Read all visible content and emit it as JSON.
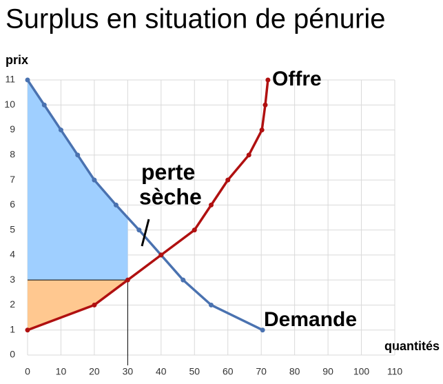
{
  "chart_data": {
    "type": "line",
    "title": "Surplus en situation de pénurie",
    "x_label": "quantités",
    "y_label": "prix",
    "xlim": [
      0,
      110
    ],
    "ylim": [
      0,
      11
    ],
    "xticks": [
      0,
      10,
      20,
      30,
      40,
      50,
      60,
      70,
      80,
      90,
      100,
      110
    ],
    "yticks": [
      0,
      1,
      2,
      3,
      4,
      5,
      6,
      7,
      8,
      9,
      10,
      11
    ],
    "grid": true,
    "series": [
      {
        "name": "Demande",
        "color": "#4a72b0",
        "x": [
          0,
          5,
          10,
          15,
          20,
          26.5,
          33.4,
          40,
          46.6,
          55,
          70.4
        ],
        "values": [
          11,
          10,
          9,
          8,
          7,
          6,
          5,
          4,
          3,
          2,
          1
        ]
      },
      {
        "name": "Offre",
        "color": "#b01010",
        "x": [
          0,
          20,
          30,
          40,
          50,
          55,
          60,
          66.3,
          70.2,
          71.2,
          72
        ],
        "values": [
          1,
          2,
          3,
          4,
          5,
          6,
          7,
          8,
          9,
          10,
          11
        ]
      }
    ],
    "reference": {
      "x": 30,
      "y": 3
    },
    "consumer_surplus_color": "#9fcfff",
    "producer_surplus_color": "#ffc890",
    "annotation": [
      "perte",
      "sèche"
    ]
  }
}
